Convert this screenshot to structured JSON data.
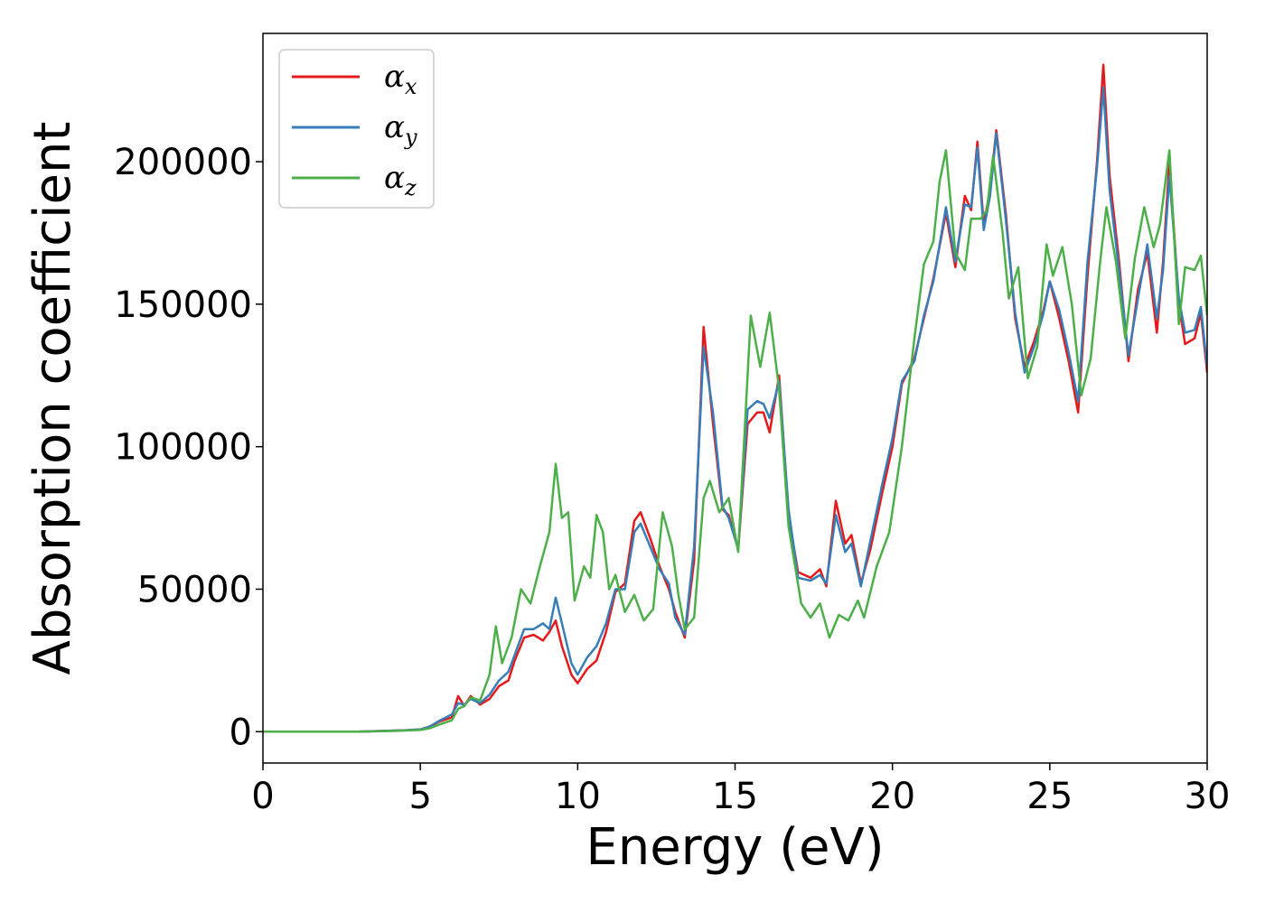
{
  "chart_data": {
    "type": "line",
    "title": "",
    "xlabel": "Energy (eV)",
    "ylabel": "Absorption coefficient",
    "xlim": [
      0,
      30
    ],
    "ylim": [
      -11000,
      245000
    ],
    "xticks": [
      0,
      5,
      10,
      15,
      20,
      25,
      30
    ],
    "yticks": [
      0,
      50000,
      100000,
      150000,
      200000
    ],
    "grid": false,
    "legend_position": "top-left",
    "series": [
      {
        "name": "α",
        "subscript": "x",
        "color": "#e41a1c",
        "points": [
          [
            0,
            0
          ],
          [
            1,
            0
          ],
          [
            2,
            0
          ],
          [
            3,
            0
          ],
          [
            4,
            300
          ],
          [
            4.5,
            500
          ],
          [
            5,
            800
          ],
          [
            5.3,
            1800
          ],
          [
            5.6,
            3500
          ],
          [
            6,
            5000
          ],
          [
            6.2,
            12500
          ],
          [
            6.4,
            9000
          ],
          [
            6.6,
            12500
          ],
          [
            6.9,
            9500
          ],
          [
            7.2,
            11500
          ],
          [
            7.5,
            16000
          ],
          [
            7.8,
            18000
          ],
          [
            8,
            25000
          ],
          [
            8.3,
            33000
          ],
          [
            8.6,
            34000
          ],
          [
            8.9,
            32000
          ],
          [
            9.1,
            35000
          ],
          [
            9.3,
            39000
          ],
          [
            9.5,
            30000
          ],
          [
            9.8,
            20000
          ],
          [
            10,
            17000
          ],
          [
            10.3,
            22000
          ],
          [
            10.6,
            25000
          ],
          [
            10.9,
            35000
          ],
          [
            11.2,
            49000
          ],
          [
            11.5,
            52000
          ],
          [
            11.8,
            74000
          ],
          [
            12,
            77000
          ],
          [
            12.3,
            68000
          ],
          [
            12.6,
            58000
          ],
          [
            12.9,
            50000
          ],
          [
            13.1,
            42000
          ],
          [
            13.4,
            33000
          ],
          [
            13.7,
            60000
          ],
          [
            14,
            142000
          ],
          [
            14.3,
            108000
          ],
          [
            14.6,
            78000
          ],
          [
            14.8,
            76000
          ],
          [
            15.1,
            64000
          ],
          [
            15.4,
            108000
          ],
          [
            15.7,
            112000
          ],
          [
            15.9,
            112000
          ],
          [
            16.1,
            105000
          ],
          [
            16.4,
            125000
          ],
          [
            16.7,
            76000
          ],
          [
            17,
            56000
          ],
          [
            17.4,
            54000
          ],
          [
            17.7,
            57000
          ],
          [
            17.9,
            51000
          ],
          [
            18.2,
            81000
          ],
          [
            18.5,
            66000
          ],
          [
            18.7,
            69000
          ],
          [
            19,
            52000
          ],
          [
            19.3,
            64000
          ],
          [
            19.7,
            85000
          ],
          [
            20,
            100000
          ],
          [
            20.3,
            122000
          ],
          [
            20.7,
            131000
          ],
          [
            21,
            145000
          ],
          [
            21.3,
            159000
          ],
          [
            21.7,
            182000
          ],
          [
            22,
            163000
          ],
          [
            22.3,
            188000
          ],
          [
            22.5,
            183000
          ],
          [
            22.7,
            207000
          ],
          [
            22.9,
            178000
          ],
          [
            23.1,
            190000
          ],
          [
            23.3,
            211000
          ],
          [
            23.6,
            182000
          ],
          [
            23.9,
            145000
          ],
          [
            24.2,
            128000
          ],
          [
            24.5,
            137000
          ],
          [
            24.8,
            148000
          ],
          [
            25,
            158000
          ],
          [
            25.3,
            145000
          ],
          [
            25.6,
            130000
          ],
          [
            25.9,
            112000
          ],
          [
            26.2,
            160000
          ],
          [
            26.5,
            200000
          ],
          [
            26.7,
            234000
          ],
          [
            26.9,
            195000
          ],
          [
            27.2,
            165000
          ],
          [
            27.5,
            130000
          ],
          [
            27.8,
            155000
          ],
          [
            28.1,
            168000
          ],
          [
            28.4,
            140000
          ],
          [
            28.6,
            165000
          ],
          [
            28.8,
            200000
          ],
          [
            29.1,
            150000
          ],
          [
            29.3,
            136000
          ],
          [
            29.6,
            138000
          ],
          [
            29.8,
            147000
          ],
          [
            30,
            126000
          ]
        ]
      },
      {
        "name": "α",
        "subscript": "y",
        "color": "#377eb8",
        "points": [
          [
            0,
            0
          ],
          [
            1,
            0
          ],
          [
            2,
            0
          ],
          [
            3,
            0
          ],
          [
            4,
            300
          ],
          [
            4.5,
            500
          ],
          [
            5,
            800
          ],
          [
            5.3,
            1800
          ],
          [
            5.6,
            3800
          ],
          [
            6,
            6000
          ],
          [
            6.2,
            10000
          ],
          [
            6.4,
            9500
          ],
          [
            6.6,
            11500
          ],
          [
            6.9,
            10000
          ],
          [
            7.2,
            13000
          ],
          [
            7.5,
            18000
          ],
          [
            7.8,
            21000
          ],
          [
            8,
            27000
          ],
          [
            8.3,
            36000
          ],
          [
            8.6,
            36000
          ],
          [
            8.9,
            38000
          ],
          [
            9.1,
            36000
          ],
          [
            9.3,
            47000
          ],
          [
            9.5,
            38000
          ],
          [
            9.8,
            24000
          ],
          [
            10,
            20000
          ],
          [
            10.3,
            26000
          ],
          [
            10.6,
            30000
          ],
          [
            10.9,
            38000
          ],
          [
            11.2,
            50000
          ],
          [
            11.5,
            50000
          ],
          [
            11.8,
            70000
          ],
          [
            12,
            73000
          ],
          [
            12.3,
            65000
          ],
          [
            12.6,
            57000
          ],
          [
            12.9,
            52000
          ],
          [
            13.1,
            40000
          ],
          [
            13.4,
            34000
          ],
          [
            13.7,
            65000
          ],
          [
            14,
            135000
          ],
          [
            14.3,
            112000
          ],
          [
            14.6,
            79000
          ],
          [
            14.8,
            75000
          ],
          [
            15.1,
            64000
          ],
          [
            15.4,
            113000
          ],
          [
            15.7,
            116000
          ],
          [
            15.9,
            115000
          ],
          [
            16.1,
            110000
          ],
          [
            16.4,
            123000
          ],
          [
            16.7,
            78000
          ],
          [
            17,
            54000
          ],
          [
            17.4,
            53000
          ],
          [
            17.7,
            55000
          ],
          [
            17.9,
            52000
          ],
          [
            18.2,
            76000
          ],
          [
            18.5,
            63000
          ],
          [
            18.7,
            66000
          ],
          [
            19,
            51000
          ],
          [
            19.3,
            67000
          ],
          [
            19.7,
            88000
          ],
          [
            20,
            103000
          ],
          [
            20.3,
            123000
          ],
          [
            20.7,
            130000
          ],
          [
            21,
            146000
          ],
          [
            21.3,
            158000
          ],
          [
            21.7,
            184000
          ],
          [
            22,
            165000
          ],
          [
            22.3,
            185000
          ],
          [
            22.5,
            184000
          ],
          [
            22.7,
            205000
          ],
          [
            22.9,
            176000
          ],
          [
            23.1,
            188000
          ],
          [
            23.3,
            210000
          ],
          [
            23.6,
            180000
          ],
          [
            23.9,
            147000
          ],
          [
            24.2,
            126000
          ],
          [
            24.5,
            135000
          ],
          [
            24.8,
            147000
          ],
          [
            25,
            158000
          ],
          [
            25.3,
            148000
          ],
          [
            25.6,
            133000
          ],
          [
            25.9,
            116000
          ],
          [
            26.2,
            165000
          ],
          [
            26.5,
            198000
          ],
          [
            26.7,
            226000
          ],
          [
            26.9,
            190000
          ],
          [
            27.2,
            162000
          ],
          [
            27.5,
            132000
          ],
          [
            27.8,
            152000
          ],
          [
            28.1,
            171000
          ],
          [
            28.4,
            145000
          ],
          [
            28.6,
            162000
          ],
          [
            28.8,
            195000
          ],
          [
            29.1,
            152000
          ],
          [
            29.3,
            140000
          ],
          [
            29.6,
            141000
          ],
          [
            29.8,
            149000
          ],
          [
            30,
            128000
          ]
        ]
      },
      {
        "name": "α",
        "subscript": "z",
        "color": "#4daf4a",
        "points": [
          [
            0,
            0
          ],
          [
            1,
            0
          ],
          [
            2,
            0
          ],
          [
            3,
            0
          ],
          [
            4,
            200
          ],
          [
            4.5,
            400
          ],
          [
            5,
            600
          ],
          [
            5.3,
            1200
          ],
          [
            5.6,
            2500
          ],
          [
            6,
            4000
          ],
          [
            6.2,
            8000
          ],
          [
            6.4,
            9000
          ],
          [
            6.6,
            12000
          ],
          [
            6.9,
            11000
          ],
          [
            7.2,
            20000
          ],
          [
            7.4,
            37000
          ],
          [
            7.6,
            24000
          ],
          [
            7.9,
            33000
          ],
          [
            8.2,
            50000
          ],
          [
            8.5,
            45000
          ],
          [
            8.8,
            58000
          ],
          [
            9.1,
            70000
          ],
          [
            9.3,
            94000
          ],
          [
            9.5,
            75000
          ],
          [
            9.7,
            77000
          ],
          [
            9.9,
            46000
          ],
          [
            10.2,
            58000
          ],
          [
            10.4,
            54000
          ],
          [
            10.6,
            76000
          ],
          [
            10.8,
            70000
          ],
          [
            11,
            50000
          ],
          [
            11.2,
            55000
          ],
          [
            11.5,
            42000
          ],
          [
            11.8,
            48000
          ],
          [
            12.1,
            39000
          ],
          [
            12.4,
            43000
          ],
          [
            12.7,
            77000
          ],
          [
            13,
            65000
          ],
          [
            13.2,
            48000
          ],
          [
            13.4,
            36000
          ],
          [
            13.7,
            40000
          ],
          [
            14,
            82000
          ],
          [
            14.2,
            88000
          ],
          [
            14.5,
            77000
          ],
          [
            14.8,
            82000
          ],
          [
            15.1,
            63000
          ],
          [
            15.5,
            146000
          ],
          [
            15.8,
            128000
          ],
          [
            16.1,
            147000
          ],
          [
            16.4,
            120000
          ],
          [
            16.7,
            72000
          ],
          [
            17.1,
            45000
          ],
          [
            17.4,
            40000
          ],
          [
            17.7,
            45000
          ],
          [
            18,
            33000
          ],
          [
            18.3,
            41000
          ],
          [
            18.6,
            39000
          ],
          [
            18.9,
            46000
          ],
          [
            19.1,
            40000
          ],
          [
            19.5,
            58000
          ],
          [
            19.9,
            70000
          ],
          [
            20.3,
            100000
          ],
          [
            20.7,
            138000
          ],
          [
            21,
            164000
          ],
          [
            21.3,
            172000
          ],
          [
            21.5,
            193000
          ],
          [
            21.7,
            204000
          ],
          [
            22,
            168000
          ],
          [
            22.3,
            162000
          ],
          [
            22.5,
            180000
          ],
          [
            22.8,
            180000
          ],
          [
            23,
            183000
          ],
          [
            23.2,
            202000
          ],
          [
            23.5,
            175000
          ],
          [
            23.7,
            152000
          ],
          [
            24,
            163000
          ],
          [
            24.3,
            124000
          ],
          [
            24.6,
            135000
          ],
          [
            24.9,
            171000
          ],
          [
            25.1,
            160000
          ],
          [
            25.4,
            170000
          ],
          [
            25.7,
            150000
          ],
          [
            26,
            118000
          ],
          [
            26.3,
            131000
          ],
          [
            26.6,
            165000
          ],
          [
            26.8,
            184000
          ],
          [
            27.1,
            165000
          ],
          [
            27.4,
            138000
          ],
          [
            27.7,
            166000
          ],
          [
            28,
            184000
          ],
          [
            28.3,
            170000
          ],
          [
            28.5,
            178000
          ],
          [
            28.8,
            204000
          ],
          [
            29.1,
            143000
          ],
          [
            29.3,
            163000
          ],
          [
            29.6,
            162000
          ],
          [
            29.8,
            167000
          ],
          [
            30,
            146000
          ]
        ]
      }
    ]
  }
}
